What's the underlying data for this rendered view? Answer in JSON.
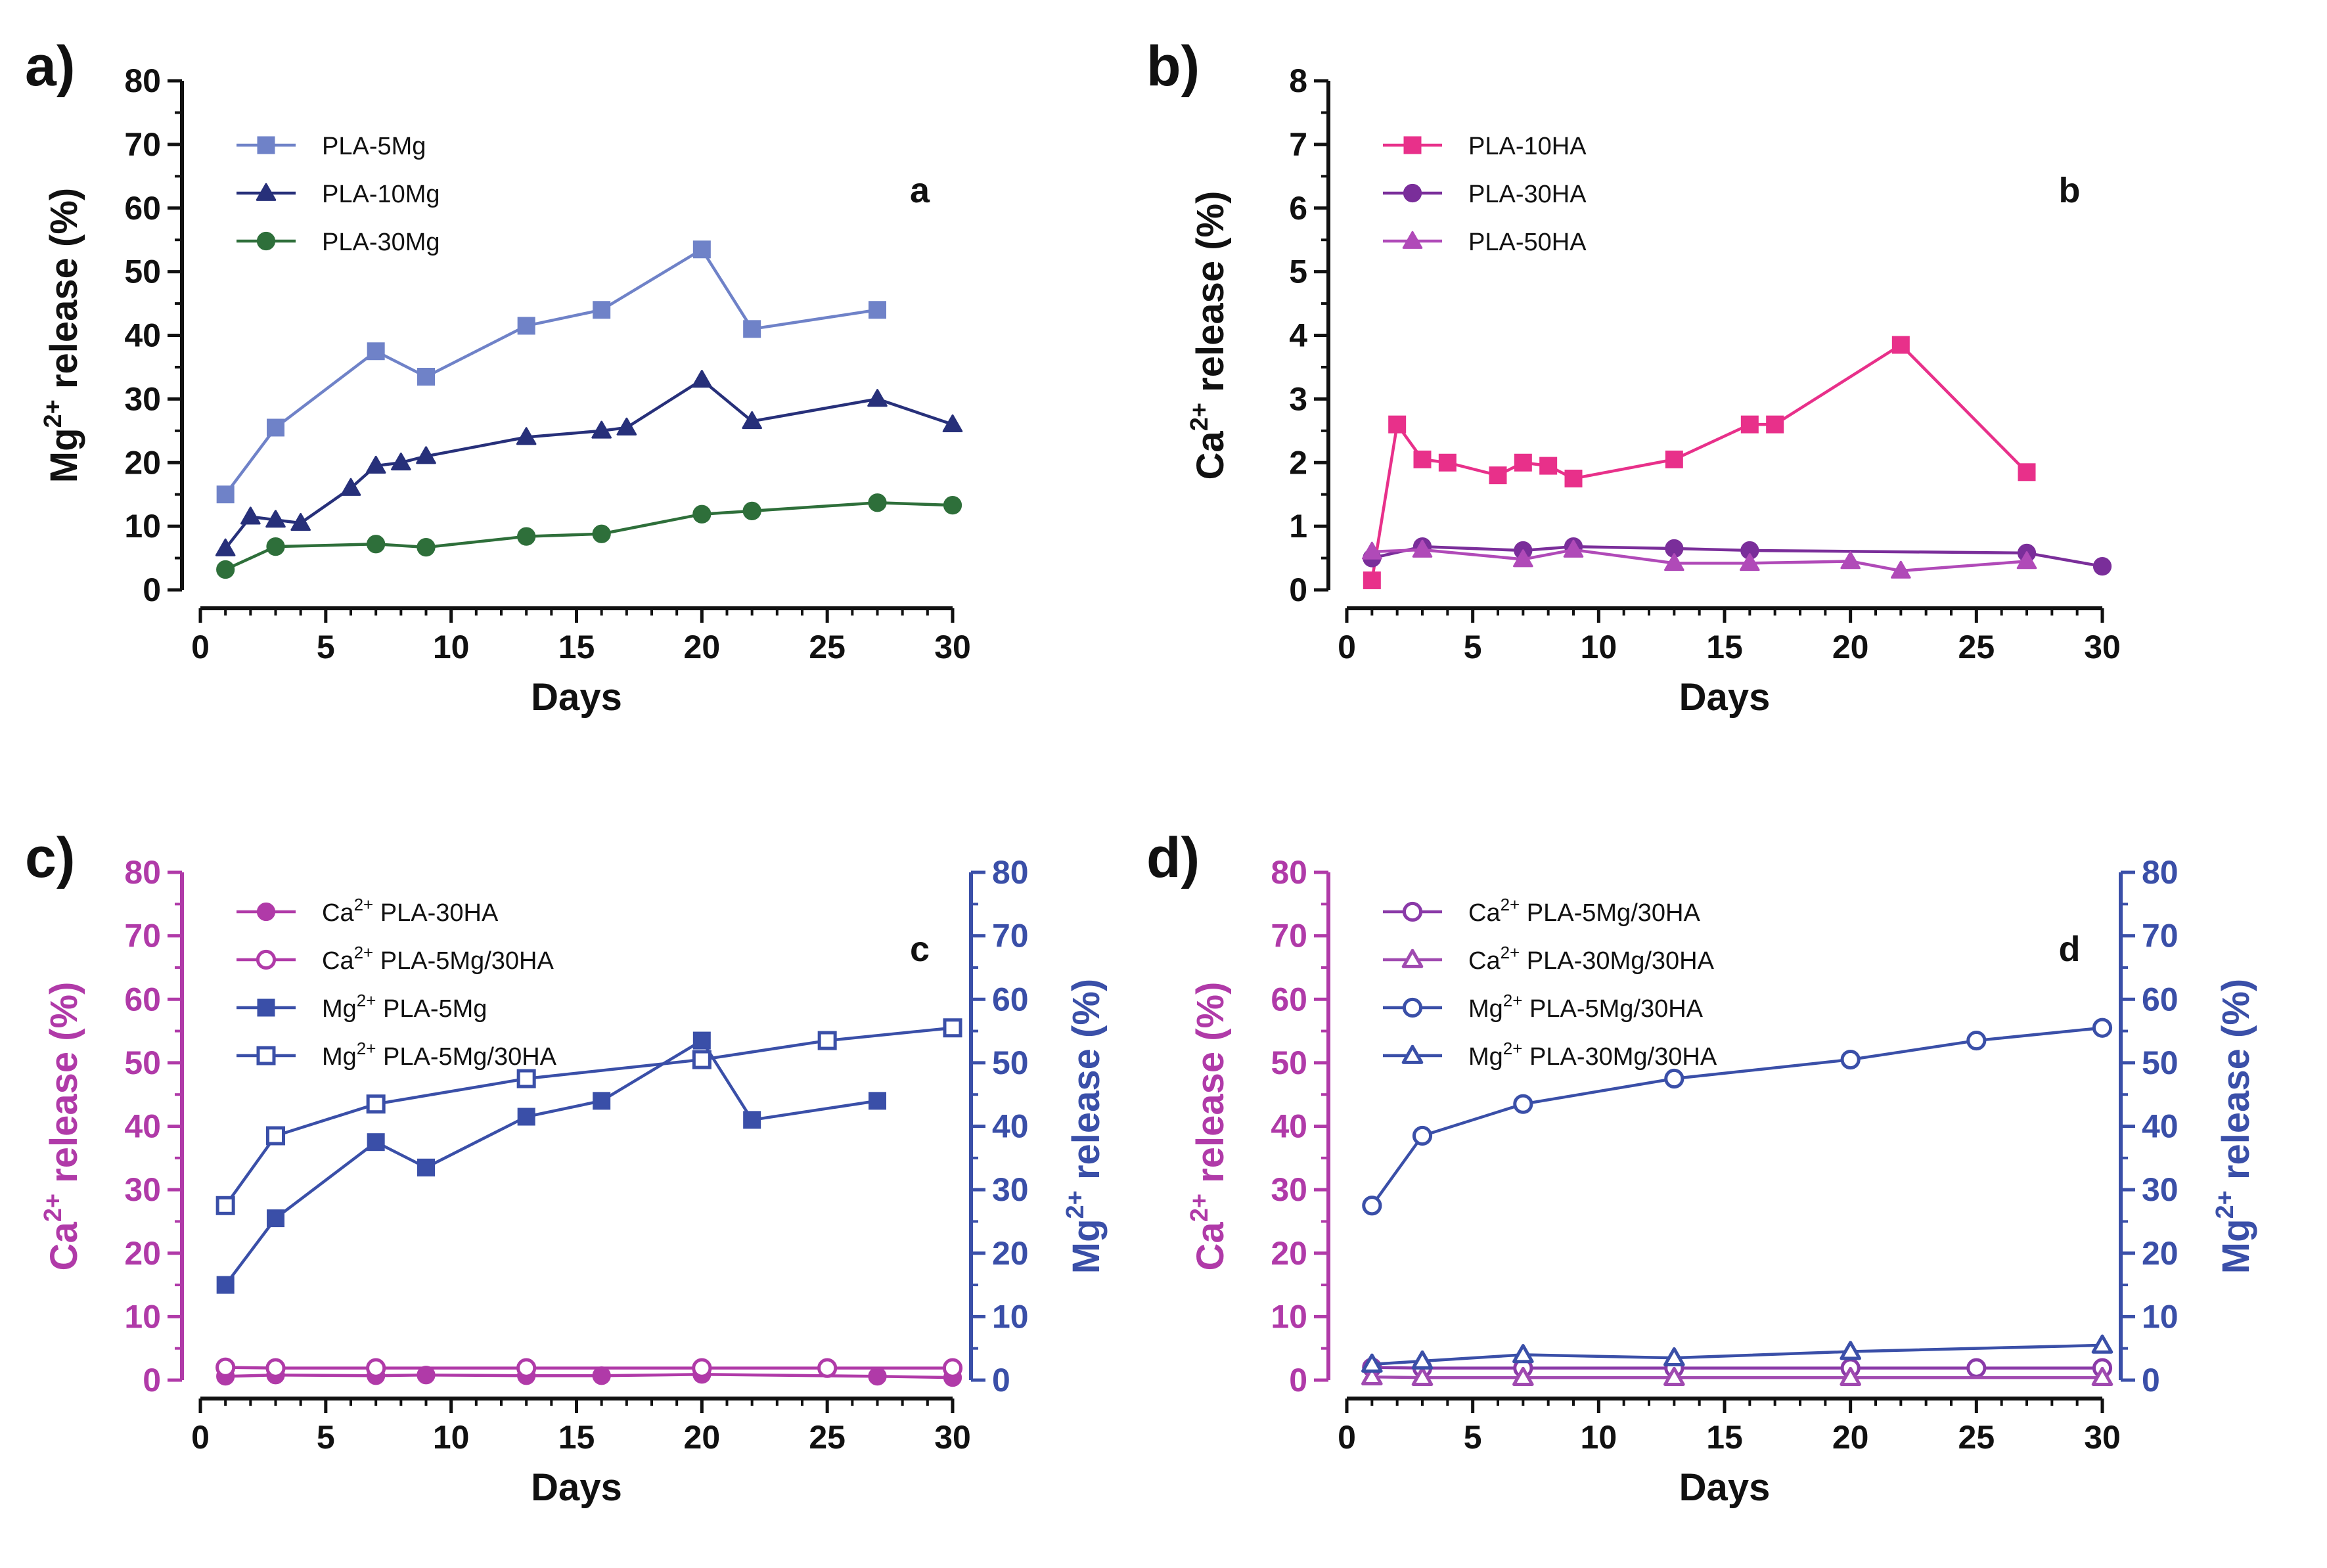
{
  "chart_data": [
    {
      "panel": "a)",
      "annotation": "a",
      "type": "line",
      "xlabel": "Days",
      "ylabel_main": "Mg",
      "ylabel_sup": "2+",
      "ylabel_rest": " release (%)",
      "xlim": [
        0,
        30
      ],
      "ylim": [
        0,
        80
      ],
      "xticks": [
        "0",
        "5",
        "10",
        "15",
        "20",
        "25",
        "30"
      ],
      "yticks": [
        "0",
        "10",
        "20",
        "30",
        "40",
        "50",
        "60",
        "70",
        "80"
      ],
      "series": [
        {
          "name": "PLA-5Mg",
          "label_sup": "",
          "label_rest": "PLA-5Mg",
          "axis": "left",
          "color": "#6f82c8",
          "marker": "square",
          "filled": true,
          "x": [
            1,
            3,
            7,
            9,
            13,
            16,
            20,
            22,
            27
          ],
          "y": [
            15,
            25.5,
            37.5,
            33.5,
            41.5,
            44,
            53.5,
            41,
            44
          ]
        },
        {
          "name": "PLA-10Mg",
          "label_sup": "",
          "label_rest": "PLA-10Mg",
          "axis": "left",
          "color": "#27307a",
          "marker": "triangle",
          "filled": true,
          "x": [
            1,
            2,
            3,
            4,
            6,
            7,
            8,
            9,
            13,
            16,
            17,
            20,
            22,
            27,
            30
          ],
          "y": [
            6.5,
            11.5,
            11,
            10.5,
            16,
            19.5,
            20,
            21,
            24,
            25,
            25.5,
            33,
            26.5,
            30,
            26
          ]
        },
        {
          "name": "PLA-30Mg",
          "label_sup": "",
          "label_rest": "PLA-30Mg",
          "axis": "left",
          "color": "#2e6f3a",
          "marker": "circle",
          "filled": true,
          "x": [
            1,
            3,
            7,
            9,
            13,
            16,
            20,
            22,
            27,
            30
          ],
          "y": [
            3.2,
            6.8,
            7.2,
            6.7,
            8.4,
            8.8,
            11.9,
            12.4,
            13.7,
            13.3
          ]
        }
      ]
    },
    {
      "panel": "b)",
      "annotation": "b",
      "type": "line",
      "xlabel": "Days",
      "ylabel_main": "Ca",
      "ylabel_sup": "2+",
      "ylabel_rest": " release (%)",
      "xlim": [
        0,
        30
      ],
      "ylim": [
        0,
        8
      ],
      "xticks": [
        "0",
        "5",
        "10",
        "15",
        "20",
        "25",
        "30"
      ],
      "yticks": [
        "0",
        "1",
        "2",
        "3",
        "4",
        "5",
        "6",
        "7",
        "8"
      ],
      "series": [
        {
          "name": "PLA-10HA",
          "label_sup": "",
          "label_rest": "PLA-10HA",
          "axis": "left",
          "color": "#e8308a",
          "marker": "square",
          "filled": true,
          "x": [
            1,
            2,
            3,
            4,
            6,
            7,
            8,
            9,
            13,
            16,
            17,
            22,
            27
          ],
          "y": [
            0.15,
            2.6,
            2.05,
            2.0,
            1.8,
            2.0,
            1.95,
            1.75,
            2.05,
            2.6,
            2.6,
            3.85,
            1.85
          ]
        },
        {
          "name": "PLA-30HA",
          "label_sup": "",
          "label_rest": "PLA-30HA",
          "axis": "left",
          "color": "#7a2e9a",
          "marker": "circle",
          "filled": true,
          "x": [
            1,
            3,
            7,
            9,
            13,
            16,
            27,
            30
          ],
          "y": [
            0.5,
            0.68,
            0.62,
            0.68,
            0.65,
            0.62,
            0.58,
            0.37
          ]
        },
        {
          "name": "PLA-50HA",
          "label_sup": "",
          "label_rest": "PLA-50HA",
          "axis": "left",
          "color": "#b04ab8",
          "marker": "triangle",
          "filled": true,
          "x": [
            1,
            3,
            7,
            9,
            13,
            16,
            20,
            22,
            27
          ],
          "y": [
            0.6,
            0.63,
            0.48,
            0.63,
            0.42,
            0.42,
            0.45,
            0.3,
            0.45
          ]
        }
      ]
    },
    {
      "panel": "c)",
      "annotation": "c",
      "type": "line",
      "xlabel": "Days",
      "ylabel_main": "Ca",
      "ylabel_sup": "2+",
      "ylabel_rest": " release (%)",
      "ylabel_left_color": "#b03aa8",
      "y2label_main": "Mg",
      "y2label_sup": "2+",
      "y2label_rest": " release (%)",
      "y2label_color": "#3a4fa8",
      "xlim": [
        0,
        30
      ],
      "ylim": [
        0,
        80
      ],
      "y2lim": [
        0,
        80
      ],
      "xticks": [
        "0",
        "5",
        "10",
        "15",
        "20",
        "25",
        "30"
      ],
      "yticks": [
        "0",
        "10",
        "20",
        "30",
        "40",
        "50",
        "60",
        "70",
        "80"
      ],
      "y2ticks": [
        "0",
        "10",
        "20",
        "30",
        "40",
        "50",
        "60",
        "70",
        "80"
      ],
      "series": [
        {
          "name": "Ca2+ PLA-30HA",
          "label_sup": "2+",
          "label_rest": " PLA-30HA",
          "label_pre": "Ca",
          "axis": "left",
          "color": "#b03aa8",
          "marker": "circle",
          "filled": true,
          "x": [
            1,
            3,
            7,
            9,
            13,
            16,
            20,
            27,
            30
          ],
          "y": [
            0.6,
            0.8,
            0.7,
            0.8,
            0.7,
            0.7,
            0.9,
            0.6,
            0.4
          ]
        },
        {
          "name": "Ca2+ PLA-5Mg/30HA",
          "label_sup": "2+",
          "label_rest": " PLA-5Mg/30HA",
          "label_pre": "Ca",
          "axis": "left",
          "color": "#b03aa8",
          "marker": "circle",
          "filled": false,
          "x": [
            1,
            3,
            7,
            13,
            20,
            25,
            30
          ],
          "y": [
            2.0,
            1.9,
            1.9,
            1.9,
            1.9,
            1.9,
            1.9
          ]
        },
        {
          "name": "Mg2+ PLA-5Mg",
          "label_sup": "2+",
          "label_rest": " PLA-5Mg",
          "label_pre": "Mg",
          "axis": "right",
          "color": "#3a4fa8",
          "marker": "square",
          "filled": true,
          "x": [
            1,
            3,
            7,
            9,
            13,
            16,
            20,
            22,
            27
          ],
          "y": [
            15,
            25.5,
            37.5,
            33.5,
            41.5,
            44,
            53.5,
            41,
            44
          ]
        },
        {
          "name": "Mg2+ PLA-5Mg/30HA",
          "label_sup": "2+",
          "label_rest": " PLA-5Mg/30HA",
          "label_pre": "Mg",
          "axis": "right",
          "color": "#3a4fa8",
          "marker": "square",
          "filled": false,
          "x": [
            1,
            3,
            7,
            13,
            20,
            25,
            30
          ],
          "y": [
            27.5,
            38.5,
            43.5,
            47.5,
            50.5,
            53.5,
            55.5
          ]
        }
      ]
    },
    {
      "panel": "d)",
      "annotation": "d",
      "type": "line",
      "xlabel": "Days",
      "ylabel_main": "Ca",
      "ylabel_sup": "2+",
      "ylabel_rest": " release (%)",
      "ylabel_left_color": "#b03aa8",
      "y2label_main": "Mg",
      "y2label_sup": "2+",
      "y2label_rest": " release (%)",
      "y2label_color": "#3a4fa8",
      "xlim": [
        0,
        30
      ],
      "ylim": [
        0,
        80
      ],
      "y2lim": [
        0,
        80
      ],
      "xticks": [
        "0",
        "5",
        "10",
        "15",
        "20",
        "25",
        "30"
      ],
      "yticks": [
        "0",
        "10",
        "20",
        "30",
        "40",
        "50",
        "60",
        "70",
        "80"
      ],
      "y2ticks": [
        "0",
        "10",
        "20",
        "30",
        "40",
        "50",
        "60",
        "70",
        "80"
      ],
      "series": [
        {
          "name": "Ca2+ PLA-5Mg/30HA",
          "label_sup": "2+",
          "label_rest": " PLA-5Mg/30HA",
          "label_pre": "Ca",
          "axis": "left",
          "color": "#8a3aa8",
          "marker": "circle",
          "filled": false,
          "x": [
            1,
            3,
            7,
            13,
            20,
            25,
            30
          ],
          "y": [
            2.0,
            1.9,
            1.9,
            1.9,
            1.9,
            1.9,
            1.9
          ]
        },
        {
          "name": "Ca2+ PLA-30Mg/30HA",
          "label_sup": "2+",
          "label_rest": " PLA-30Mg/30HA",
          "label_pre": "Ca",
          "axis": "left",
          "color": "#a04ab0",
          "marker": "triangle",
          "filled": false,
          "x": [
            1,
            3,
            7,
            13,
            20,
            30
          ],
          "y": [
            0.5,
            0.4,
            0.4,
            0.4,
            0.4,
            0.4
          ]
        },
        {
          "name": "Mg2+ PLA-5Mg/30HA",
          "label_sup": "2+",
          "label_rest": " PLA-5Mg/30HA",
          "label_pre": "Mg",
          "axis": "right",
          "color": "#3a4fa8",
          "marker": "circle",
          "filled": false,
          "x": [
            1,
            3,
            7,
            13,
            20,
            25,
            30
          ],
          "y": [
            27.5,
            38.5,
            43.5,
            47.5,
            50.5,
            53.5,
            55.5
          ]
        },
        {
          "name": "Mg2+ PLA-30Mg/30HA",
          "label_sup": "2+",
          "label_rest": " PLA-30Mg/30HA",
          "label_pre": "Mg",
          "axis": "right",
          "color": "#3a4fa8",
          "marker": "triangle",
          "filled": false,
          "x": [
            1,
            3,
            7,
            13,
            20,
            30
          ],
          "y": [
            2.5,
            3.0,
            4.0,
            3.5,
            4.5,
            5.5
          ]
        }
      ]
    }
  ]
}
